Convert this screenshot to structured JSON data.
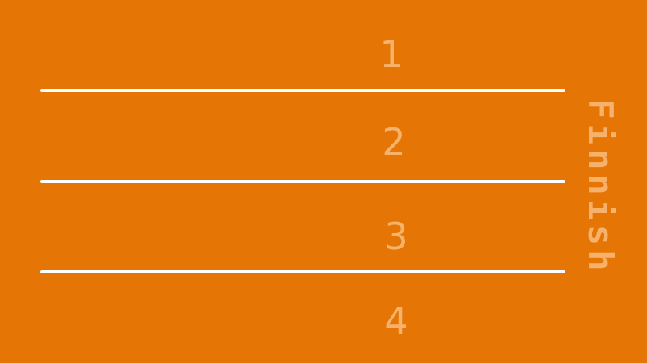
{
  "colors": {
    "background": "#E57505",
    "lane_line": "#FFFFFF",
    "label": "#F6B26A"
  },
  "lanes": [
    {
      "number": "1"
    },
    {
      "number": "2"
    },
    {
      "number": "3"
    },
    {
      "number": "4"
    }
  ],
  "finish": {
    "label": "Finnish"
  }
}
